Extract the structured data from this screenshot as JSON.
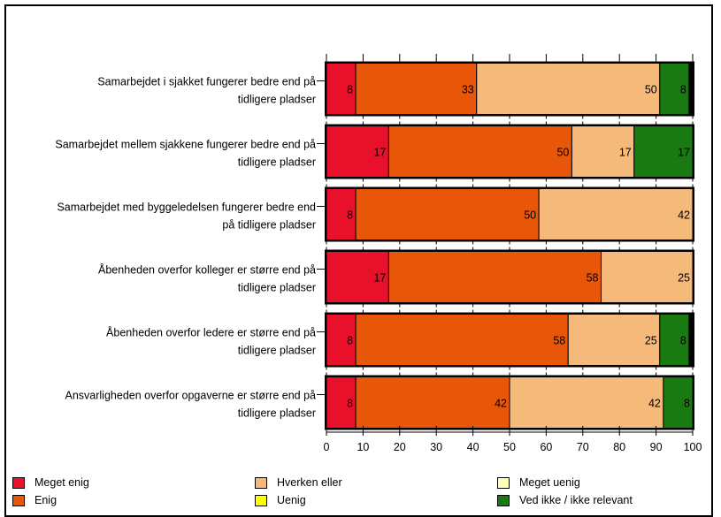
{
  "chart_data": {
    "type": "bar",
    "orientation": "horizontal",
    "stacked": true,
    "categories": [
      [
        "Samarbejdet i sjakket fungerer bedre end på",
        "tidligere pladser"
      ],
      [
        "Samarbejdet mellem sjakkene fungerer bedre end på",
        "tidligere pladser"
      ],
      [
        "Samarbejdet med byggeledelsen fungerer bedre end",
        "på tidligere pladser"
      ],
      [
        "Åbenheden overfor kolleger er større end på",
        "tidligere pladser"
      ],
      [
        "Åbenheden overfor ledere er større end på",
        "tidligere pladser"
      ],
      [
        "Ansvarligheden overfor opgaverne er større end på",
        "tidligere pladser"
      ]
    ],
    "series": [
      {
        "name": "Meget enig",
        "color": "#e8102a",
        "values": [
          8,
          17,
          8,
          17,
          8,
          8
        ],
        "labels": [
          "8",
          "17",
          "8",
          "17",
          "8",
          "8"
        ]
      },
      {
        "name": "Enig",
        "color": "#e8560a",
        "values": [
          33,
          50,
          50,
          58,
          58,
          42
        ],
        "labels": [
          "33",
          "50",
          "50",
          "58",
          "58",
          "42"
        ]
      },
      {
        "name": "Hverken eller",
        "color": "#f5b97a",
        "values": [
          50,
          17,
          42,
          25,
          25,
          42
        ],
        "labels": [
          "50",
          "17",
          "42",
          "25",
          "25",
          "42"
        ]
      },
      {
        "name": "Uenig",
        "color": "#ffff00",
        "values": [
          0,
          0,
          0,
          0,
          0,
          0
        ],
        "labels": [
          "",
          "",
          "",
          "",
          "",
          ""
        ]
      },
      {
        "name": "Meget uenig",
        "color": "#ffffb8",
        "values": [
          0,
          0,
          0,
          0,
          0,
          0
        ],
        "labels": [
          "",
          "",
          "",
          "",
          "",
          ""
        ]
      },
      {
        "name": "Ved ikke / ikke relevant",
        "color": "#197a12",
        "values": [
          8,
          17,
          0,
          0,
          8,
          8
        ],
        "labels": [
          "8",
          "17",
          "",
          "",
          "8",
          "8"
        ]
      }
    ],
    "xlim": [
      0,
      100
    ],
    "xticks": [
      "0",
      "10",
      "20",
      "30",
      "40",
      "50",
      "60",
      "70",
      "80",
      "90",
      "100"
    ],
    "legend_position": "bottom",
    "grid": false
  }
}
